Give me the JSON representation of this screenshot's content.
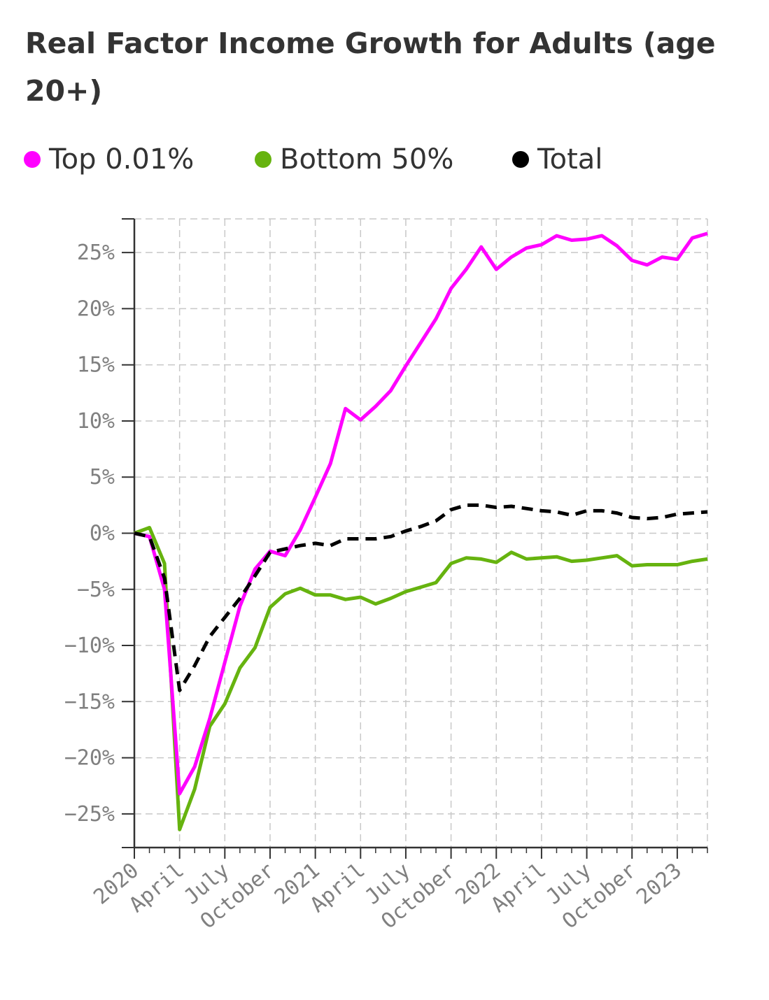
{
  "chart_data": {
    "type": "line",
    "title": "Real Factor Income Growth for Adults (age 20+)",
    "xlabel": "",
    "ylabel": "",
    "x_ticks": [
      "2020",
      "April",
      "July",
      "October",
      "2021",
      "April",
      "July",
      "October",
      "2022",
      "April",
      "July",
      "October",
      "2023"
    ],
    "x_range": [
      "2020-01",
      "2023-03"
    ],
    "y_ticks": [
      "25%",
      "20%",
      "15%",
      "10%",
      "5%",
      "0%",
      "−5%",
      "−10%",
      "−15%",
      "−20%",
      "−25%"
    ],
    "y_tick_values": [
      25,
      20,
      15,
      10,
      5,
      0,
      -5,
      -10,
      -15,
      -20,
      -25
    ],
    "ylim": [
      -28,
      28
    ],
    "grid": true,
    "legend_position": "top-left",
    "x": [
      "2020-01",
      "2020-02",
      "2020-03",
      "2020-04",
      "2020-05",
      "2020-06",
      "2020-07",
      "2020-08",
      "2020-09",
      "2020-10",
      "2020-11",
      "2020-12",
      "2021-01",
      "2021-02",
      "2021-03",
      "2021-04",
      "2021-05",
      "2021-06",
      "2021-07",
      "2021-08",
      "2021-09",
      "2021-10",
      "2021-11",
      "2021-12",
      "2022-01",
      "2022-02",
      "2022-03",
      "2022-04",
      "2022-05",
      "2022-06",
      "2022-07",
      "2022-08",
      "2022-09",
      "2022-10",
      "2022-11",
      "2022-12",
      "2023-01",
      "2023-02",
      "2023-03"
    ],
    "series": [
      {
        "name": "Top 0.01%",
        "color": "#ff00ff",
        "style": "solid",
        "values": [
          0.0,
          -0.3,
          -5.0,
          -23.2,
          -20.8,
          -16.5,
          -11.5,
          -6.5,
          -3.2,
          -1.6,
          -2.0,
          0.3,
          3.2,
          6.2,
          11.1,
          10.1,
          11.3,
          12.7,
          14.9,
          17.0,
          19.1,
          21.8,
          23.5,
          25.5,
          23.5,
          24.6,
          25.4,
          25.7,
          26.5,
          26.1,
          26.2,
          26.5,
          25.6,
          24.3,
          23.9,
          24.6,
          24.4,
          26.3,
          26.7
        ]
      },
      {
        "name": "Bottom 50%",
        "color": "#66b30f",
        "style": "solid",
        "values": [
          0.0,
          0.5,
          -2.7,
          -26.4,
          -22.8,
          -17.2,
          -15.2,
          -12.0,
          -10.2,
          -6.6,
          -5.4,
          -4.9,
          -5.5,
          -5.5,
          -5.9,
          -5.7,
          -6.3,
          -5.8,
          -5.2,
          -4.8,
          -4.4,
          -2.7,
          -2.2,
          -2.3,
          -2.6,
          -1.7,
          -2.3,
          -2.2,
          -2.1,
          -2.5,
          -2.4,
          -2.2,
          -2.0,
          -2.9,
          -2.8,
          -2.8,
          -2.8,
          -2.5,
          -2.3
        ]
      },
      {
        "name": "Total",
        "color": "#000000",
        "style": "dashed",
        "values": [
          0.0,
          -0.3,
          -4.0,
          -14.0,
          -11.8,
          -9.2,
          -7.5,
          -5.8,
          -3.8,
          -1.7,
          -1.4,
          -1.1,
          -0.9,
          -1.1,
          -0.5,
          -0.5,
          -0.5,
          -0.3,
          0.2,
          0.6,
          1.1,
          2.1,
          2.5,
          2.5,
          2.3,
          2.4,
          2.2,
          2.0,
          1.9,
          1.6,
          2.0,
          2.0,
          1.8,
          1.4,
          1.3,
          1.4,
          1.7,
          1.8,
          1.9
        ]
      }
    ]
  }
}
